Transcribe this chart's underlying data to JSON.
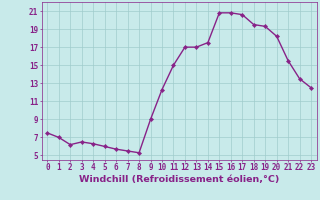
{
  "xlabel": "Windchill (Refroidissement éolien,°C)",
  "x": [
    0,
    1,
    2,
    3,
    4,
    5,
    6,
    7,
    8,
    9,
    10,
    11,
    12,
    13,
    14,
    15,
    16,
    17,
    18,
    19,
    20,
    21,
    22,
    23
  ],
  "y": [
    7.5,
    7.0,
    6.2,
    6.5,
    6.3,
    6.0,
    5.7,
    5.5,
    5.3,
    9.0,
    12.3,
    15.0,
    17.0,
    17.0,
    17.5,
    20.8,
    20.8,
    20.6,
    19.5,
    19.3,
    18.2,
    15.5,
    13.5,
    12.5
  ],
  "line_color": "#882288",
  "marker": "D",
  "marker_size": 2.2,
  "background_color": "#c8eaea",
  "grid_color": "#a0cccc",
  "ylim": [
    4.5,
    22.0
  ],
  "xlim": [
    -0.5,
    23.5
  ],
  "yticks": [
    5,
    7,
    9,
    11,
    13,
    15,
    17,
    19,
    21
  ],
  "xticks": [
    0,
    1,
    2,
    3,
    4,
    5,
    6,
    7,
    8,
    9,
    10,
    11,
    12,
    13,
    14,
    15,
    16,
    17,
    18,
    19,
    20,
    21,
    22,
    23
  ],
  "tick_label_fontsize": 5.5,
  "xlabel_fontsize": 6.8,
  "tick_color": "#882288",
  "axis_color": "#882288",
  "linewidth": 1.0
}
